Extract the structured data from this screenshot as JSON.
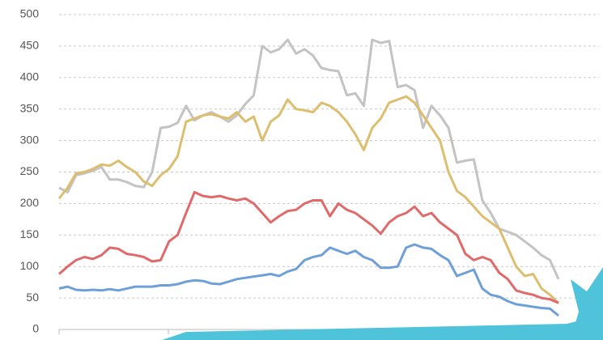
{
  "chart_data": {
    "type": "line",
    "series": [
      {
        "color": "#c3c3c3",
        "values": [
          225,
          218,
          245,
          248,
          252,
          258,
          238,
          238,
          234,
          228,
          226,
          250,
          320,
          322,
          328,
          355,
          332,
          340,
          345,
          338,
          330,
          340,
          358,
          372,
          450,
          440,
          445,
          460,
          438,
          445,
          435,
          415,
          412,
          410,
          372,
          375,
          355,
          460,
          455,
          458,
          385,
          388,
          380,
          320,
          355,
          340,
          320,
          265,
          268,
          270,
          205,
          185,
          160,
          155,
          150,
          140,
          130,
          118,
          110,
          80
        ]
      },
      {
        "color": "#dcbe6e",
        "values": [
          208,
          225,
          248,
          250,
          255,
          262,
          260,
          268,
          258,
          250,
          235,
          228,
          245,
          255,
          275,
          330,
          335,
          340,
          342,
          338,
          335,
          345,
          330,
          338,
          300,
          330,
          340,
          365,
          350,
          348,
          345,
          360,
          355,
          345,
          330,
          310,
          285,
          320,
          335,
          360,
          365,
          370,
          360,
          340,
          320,
          300,
          250,
          220,
          210,
          195,
          180,
          170,
          160,
          130,
          100,
          85,
          88,
          65,
          55,
          42
        ]
      },
      {
        "color": "#e06a6a",
        "values": [
          88,
          100,
          110,
          115,
          112,
          118,
          130,
          128,
          120,
          118,
          115,
          108,
          110,
          140,
          150,
          185,
          218,
          212,
          210,
          212,
          208,
          205,
          208,
          200,
          185,
          170,
          180,
          188,
          190,
          200,
          205,
          205,
          180,
          200,
          190,
          185,
          175,
          165,
          152,
          170,
          180,
          185,
          195,
          180,
          185,
          170,
          160,
          150,
          120,
          110,
          115,
          110,
          90,
          80,
          62,
          58,
          55,
          50,
          48,
          42
        ]
      },
      {
        "color": "#6f9fd8",
        "values": [
          65,
          68,
          63,
          62,
          63,
          62,
          64,
          62,
          65,
          68,
          68,
          68,
          70,
          70,
          72,
          76,
          78,
          77,
          73,
          72,
          76,
          80,
          82,
          84,
          86,
          88,
          85,
          92,
          96,
          110,
          115,
          118,
          130,
          125,
          120,
          125,
          115,
          110,
          98,
          98,
          100,
          130,
          135,
          130,
          128,
          118,
          110,
          85,
          90,
          95,
          65,
          55,
          52,
          45,
          40,
          38,
          36,
          34,
          33,
          22
        ]
      }
    ],
    "ylim": [
      0,
      500
    ],
    "yticks": [
      0,
      50,
      100,
      150,
      200,
      250,
      300,
      350,
      400,
      450,
      500
    ],
    "grid": true
  }
}
